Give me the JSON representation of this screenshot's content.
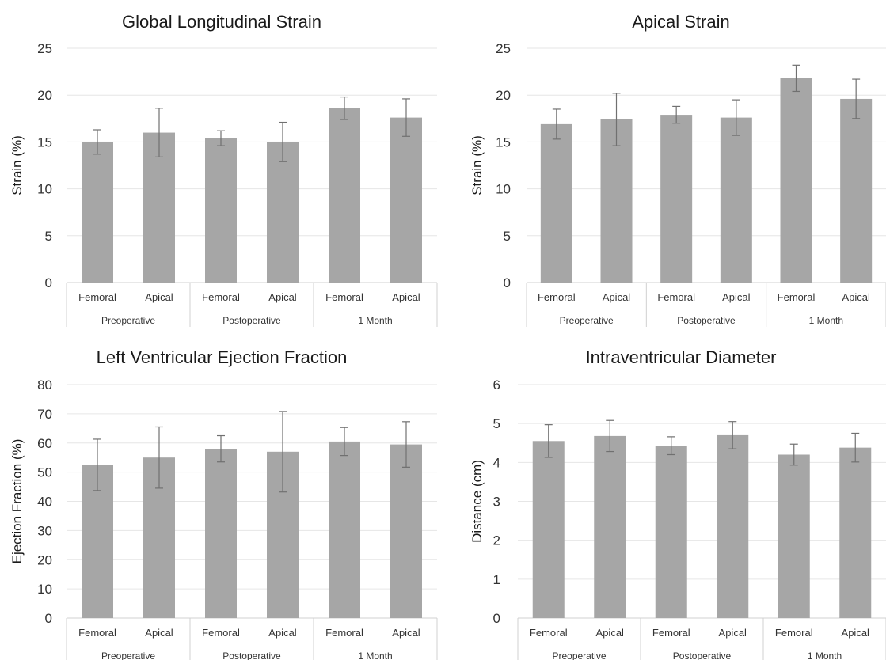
{
  "colors": {
    "bar": "#a6a6a6",
    "error_bar": "#707070",
    "grid": "#e6e6e6",
    "axis": "#d0d0d0"
  },
  "chart_data": [
    {
      "type": "bar",
      "title": "Global Longitudinal Strain",
      "ylabel": "Strain (%)",
      "ylim": [
        0,
        25
      ],
      "yticks": [
        0,
        5,
        10,
        15,
        20,
        25
      ],
      "grid": true,
      "categories": [
        "Femoral",
        "Apical",
        "Femoral",
        "Apical",
        "Femoral",
        "Apical"
      ],
      "groups": [
        "Preoperative",
        "Postoperative",
        "1 Month"
      ],
      "values": [
        15.0,
        16.0,
        15.4,
        15.0,
        18.6,
        17.6
      ],
      "errors": [
        1.3,
        2.6,
        0.8,
        2.1,
        1.2,
        2.0
      ]
    },
    {
      "type": "bar",
      "title": "Apical Strain",
      "ylabel": "Strain (%)",
      "ylim": [
        0,
        25
      ],
      "yticks": [
        0,
        5,
        10,
        15,
        20,
        25
      ],
      "grid": true,
      "categories": [
        "Femoral",
        "Apical",
        "Femoral",
        "Apical",
        "Femoral",
        "Apical"
      ],
      "groups": [
        "Preoperative",
        "Postoperative",
        "1 Month"
      ],
      "values": [
        16.9,
        17.4,
        17.9,
        17.6,
        21.8,
        19.6
      ],
      "errors": [
        1.6,
        2.8,
        0.9,
        1.9,
        1.4,
        2.1
      ]
    },
    {
      "type": "bar",
      "title": "Left Ventricular Ejection Fraction",
      "ylabel": "Ejection Fraction (%)",
      "ylim": [
        0,
        80
      ],
      "yticks": [
        0,
        10,
        20,
        30,
        40,
        50,
        60,
        70,
        80
      ],
      "grid": true,
      "categories": [
        "Femoral",
        "Apical",
        "Femoral",
        "Apical",
        "Femoral",
        "Apical"
      ],
      "groups": [
        "Preoperative",
        "Postoperative",
        "1 Month"
      ],
      "values": [
        52.5,
        55.0,
        58.0,
        57.0,
        60.5,
        59.5
      ],
      "errors": [
        8.8,
        10.5,
        4.5,
        13.8,
        4.8,
        7.8
      ]
    },
    {
      "type": "bar",
      "title": "Intraventricular Diameter",
      "ylabel": "Distance (cm)",
      "ylim": [
        0,
        6
      ],
      "yticks": [
        0,
        1,
        2,
        3,
        4,
        5,
        6
      ],
      "grid": true,
      "categories": [
        "Femoral",
        "Apical",
        "Femoral",
        "Apical",
        "Femoral",
        "Apical"
      ],
      "groups": [
        "Preoperative",
        "Postoperative",
        "1 Month"
      ],
      "values": [
        4.55,
        4.68,
        4.43,
        4.7,
        4.2,
        4.38
      ],
      "errors": [
        0.42,
        0.4,
        0.23,
        0.35,
        0.27,
        0.37
      ]
    }
  ]
}
